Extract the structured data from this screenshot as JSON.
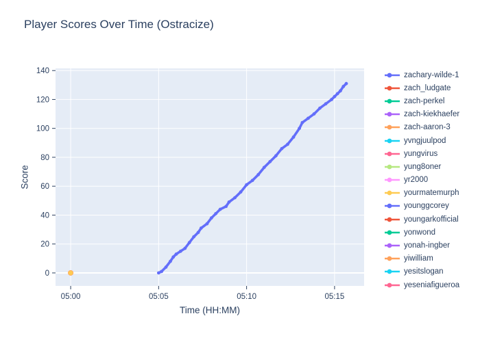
{
  "figure": {
    "title": "Player Scores Over Time (Ostracize)"
  },
  "colors": {
    "text": "#2a3f5f",
    "paper_background": "#ffffff",
    "plot_background": "#E5ECF6",
    "grid": "#ffffff",
    "tick": "#2a3f5f"
  },
  "chart_data": {
    "type": "line",
    "title": "Player Scores Over Time (Ostracize)",
    "xlabel": "Time (HH:MM)",
    "ylabel": "Score",
    "x_tick_labels": [
      "05:00",
      "05:05",
      "05:10",
      "05:15"
    ],
    "x_tick_minutes": [
      0,
      5,
      10,
      15
    ],
    "y_ticks": [
      0,
      20,
      40,
      60,
      80,
      100,
      120,
      140
    ],
    "x_range_minutes": [
      -0.86,
      16.68
    ],
    "y_range": [
      -9,
      141.5
    ],
    "grid": true,
    "legend_position": "right-outside",
    "note": "Only zachary-wilde-1 shows a visible score line (05:05 to ~05:15:40, 0 to ~131). A small yellow-over-orange overlapping marker cluster sits at 05:00, score 0. All other players appear only in the legend; the last legend entry is clipped at the bottom.",
    "series": [
      {
        "name": "zachary-wilde-1",
        "color": "#636EFA",
        "mode": "lines+markers",
        "points": [
          [
            "05:05:00",
            0
          ],
          [
            "05:05:10",
            1
          ],
          [
            "05:05:25",
            4
          ],
          [
            "05:05:40",
            8
          ],
          [
            "05:05:50",
            11
          ],
          [
            "05:06:00",
            13
          ],
          [
            "05:06:15",
            15
          ],
          [
            "05:06:30",
            17
          ],
          [
            "05:06:45",
            21
          ],
          [
            "05:07:00",
            25
          ],
          [
            "05:07:15",
            28
          ],
          [
            "05:07:25",
            31
          ],
          [
            "05:07:45",
            34
          ],
          [
            "05:08:00",
            38
          ],
          [
            "05:08:15",
            41
          ],
          [
            "05:08:30",
            44
          ],
          [
            "05:08:50",
            46
          ],
          [
            "05:09:00",
            49
          ],
          [
            "05:09:20",
            52
          ],
          [
            "05:09:40",
            56
          ],
          [
            "05:10:00",
            61
          ],
          [
            "05:10:20",
            64
          ],
          [
            "05:10:40",
            68
          ],
          [
            "05:11:00",
            73
          ],
          [
            "05:11:20",
            77
          ],
          [
            "05:11:40",
            81
          ],
          [
            "05:12:00",
            86
          ],
          [
            "05:12:20",
            89
          ],
          [
            "05:12:40",
            94
          ],
          [
            "05:13:00",
            100
          ],
          [
            "05:13:10",
            104
          ],
          [
            "05:13:30",
            107
          ],
          [
            "05:13:50",
            110
          ],
          [
            "05:14:10",
            114
          ],
          [
            "05:14:30",
            117
          ],
          [
            "05:14:50",
            120
          ],
          [
            "05:15:00",
            122
          ],
          [
            "05:15:10",
            124
          ],
          [
            "05:15:20",
            126
          ],
          [
            "05:15:30",
            129
          ],
          [
            "05:15:40",
            131
          ]
        ]
      },
      {
        "name": "zach_ludgate",
        "color": "#EF553B",
        "mode": "lines+markers",
        "points": []
      },
      {
        "name": "zach-perkel",
        "color": "#00CC96",
        "mode": "lines+markers",
        "points": []
      },
      {
        "name": "zach-kiekhaefer",
        "color": "#AB63FA",
        "mode": "lines+markers",
        "points": []
      },
      {
        "name": "zach-aaron-3",
        "color": "#FFA15A",
        "mode": "lines+markers",
        "marker_size": 8,
        "points": [
          [
            "05:00:00",
            0
          ]
        ]
      },
      {
        "name": "yvngjuulpod",
        "color": "#19D3F3",
        "mode": "lines+markers",
        "points": []
      },
      {
        "name": "yungvirus",
        "color": "#FF6692",
        "mode": "lines+markers",
        "points": []
      },
      {
        "name": "yung8oner",
        "color": "#B6E880",
        "mode": "lines+markers",
        "points": []
      },
      {
        "name": "yr2000",
        "color": "#FF97FF",
        "mode": "lines+markers",
        "points": []
      },
      {
        "name": "yourmatemurph",
        "color": "#FECB52",
        "mode": "lines+markers",
        "marker_size": 6.5,
        "points": [
          [
            "05:00:00",
            0
          ]
        ]
      },
      {
        "name": "younggcorey",
        "color": "#636EFA",
        "mode": "lines+markers",
        "points": []
      },
      {
        "name": "youngarkofficial",
        "color": "#EF553B",
        "mode": "lines+markers",
        "points": []
      },
      {
        "name": "yonwond",
        "color": "#00CC96",
        "mode": "lines+markers",
        "points": []
      },
      {
        "name": "yonah-ingber",
        "color": "#AB63FA",
        "mode": "lines+markers",
        "points": []
      },
      {
        "name": "yiwilliam",
        "color": "#FFA15A",
        "mode": "lines+markers",
        "points": []
      },
      {
        "name": "yesitslogan",
        "color": "#19D3F3",
        "mode": "lines+markers",
        "points": []
      },
      {
        "name": "yeseniafigueroa",
        "color": "#FF6692",
        "mode": "lines+markers",
        "points": []
      }
    ]
  }
}
